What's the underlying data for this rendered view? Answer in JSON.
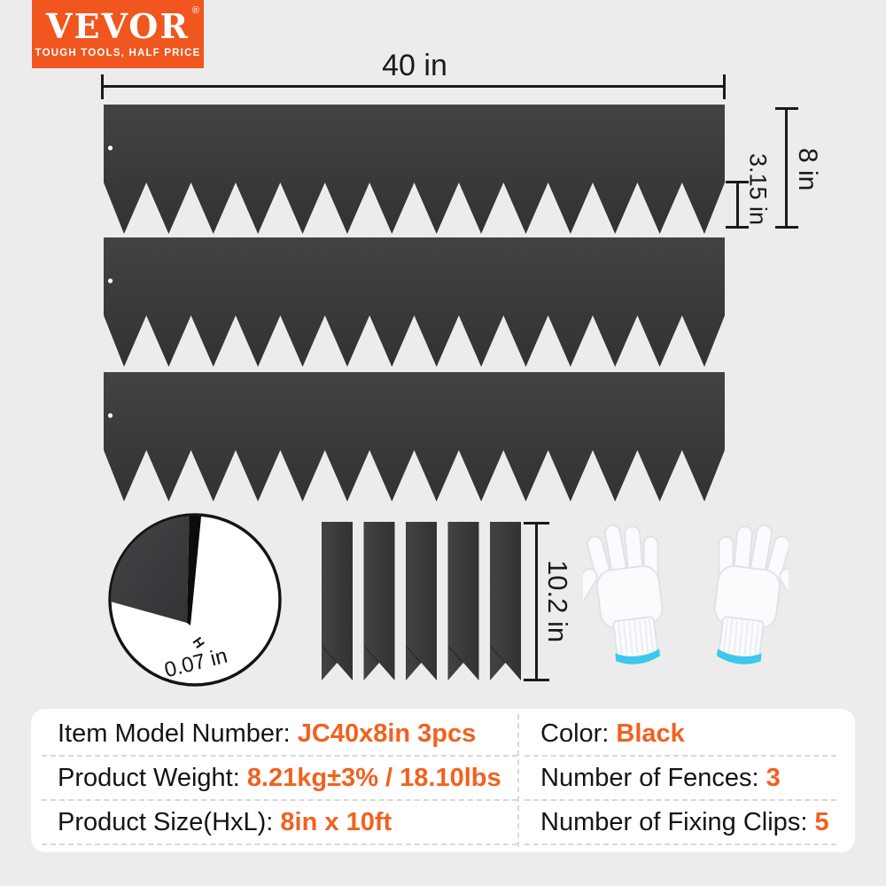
{
  "colors": {
    "background": "#ECECEC",
    "accent_orange": "#F0561E",
    "value_orange": "#F2611F",
    "metal_dark": "#3A3A3C",
    "metal_dark_hi": "#434345",
    "metal_dark_lo": "#323234",
    "line_color": "#1A1A1A",
    "glove_cuff_blue": "#3BC8EC",
    "card_bg": "#FFFFFF"
  },
  "logo": {
    "brand": "VEVOR",
    "registered": "®",
    "tagline": "TOUGH TOOLS, HALF PRICE"
  },
  "dimensions": {
    "width_label": "40 in",
    "height_label": "8 in",
    "tooth_label": "3.15 in",
    "thickness_label": "0.07 in",
    "clip_length_label": "10.2 in"
  },
  "objects": {
    "fence_strip_count": 3,
    "clip_count": 5
  },
  "specs": {
    "left": [
      {
        "label": "Item Model Number: ",
        "value": "JC40x8in 3pcs"
      },
      {
        "label": "Product Weight: ",
        "value": "8.21kg±3% / 18.10lbs"
      },
      {
        "label": "Product Size(HxL): ",
        "value": "8in x 10ft"
      }
    ],
    "right": [
      {
        "label": "Color: ",
        "value": "Black"
      },
      {
        "label": "Number of Fences: ",
        "value": "3"
      },
      {
        "label": "Number of Fixing Clips: ",
        "value": "5"
      }
    ]
  }
}
